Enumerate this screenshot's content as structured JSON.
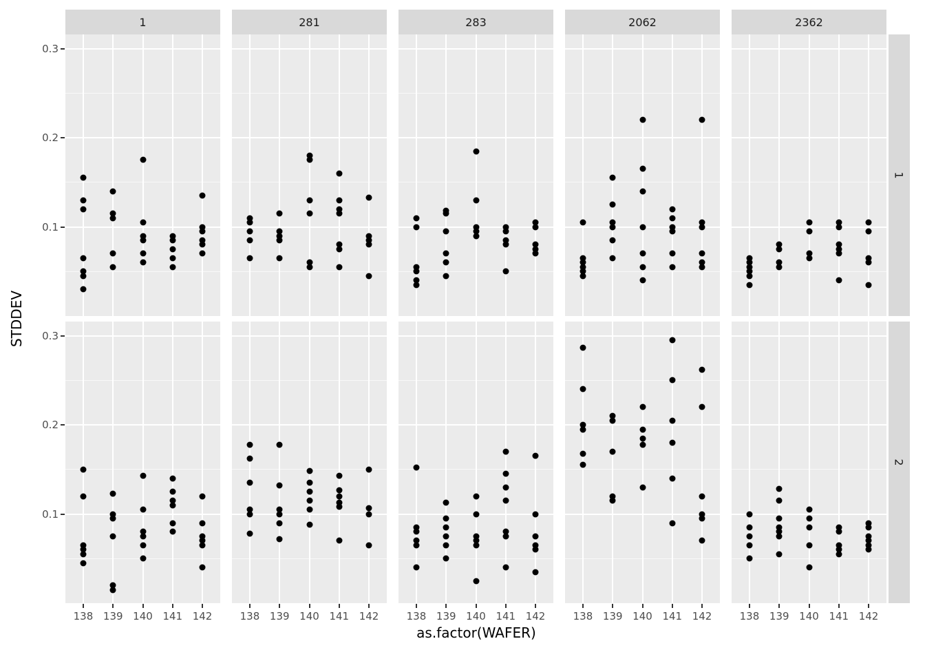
{
  "chart_data": {
    "type": "scatter",
    "title": "",
    "xlabel": "as.factor(WAFER)",
    "ylabel": "STDDEV",
    "x_categories": [
      "138",
      "139",
      "140",
      "141",
      "142"
    ],
    "col_facets": [
      "1",
      "281",
      "283",
      "2062",
      "2362"
    ],
    "row_facets": [
      "1",
      "2"
    ],
    "y_ticks": [
      0.3,
      0.2,
      0.1
    ],
    "y_minor_ticks": [
      0.05,
      0.15,
      0.25
    ],
    "ylim": [
      0,
      0.316
    ],
    "grid": "on",
    "legend": "none",
    "facets": [
      {
        "row": "1",
        "col": "1",
        "points": {
          "138": [
            0.155,
            0.13,
            0.12,
            0.065,
            0.05,
            0.045,
            0.03
          ],
          "139": [
            0.14,
            0.115,
            0.11,
            0.07,
            0.055
          ],
          "140": [
            0.175,
            0.105,
            0.09,
            0.085,
            0.07,
            0.06
          ],
          "141": [
            0.09,
            0.085,
            0.075,
            0.065,
            0.055
          ],
          "142": [
            0.135,
            0.1,
            0.095,
            0.085,
            0.08,
            0.07
          ]
        }
      },
      {
        "row": "1",
        "col": "281",
        "points": {
          "138": [
            0.11,
            0.105,
            0.095,
            0.085,
            0.065
          ],
          "139": [
            0.115,
            0.095,
            0.09,
            0.085,
            0.065
          ],
          "140": [
            0.18,
            0.175,
            0.13,
            0.115,
            0.06,
            0.055
          ],
          "141": [
            0.16,
            0.13,
            0.12,
            0.115,
            0.08,
            0.075,
            0.055
          ],
          "142": [
            0.133,
            0.09,
            0.085,
            0.08,
            0.045
          ]
        }
      },
      {
        "row": "1",
        "col": "283",
        "points": {
          "138": [
            0.11,
            0.1,
            0.055,
            0.05,
            0.04,
            0.035
          ],
          "139": [
            0.118,
            0.115,
            0.095,
            0.07,
            0.06,
            0.045
          ],
          "140": [
            0.185,
            0.13,
            0.1,
            0.095,
            0.09
          ],
          "141": [
            0.1,
            0.095,
            0.085,
            0.08,
            0.05
          ],
          "142": [
            0.105,
            0.1,
            0.08,
            0.075,
            0.07
          ]
        }
      },
      {
        "row": "1",
        "col": "2062",
        "points": {
          "138": [
            0.105,
            0.065,
            0.06,
            0.055,
            0.05,
            0.045
          ],
          "139": [
            0.155,
            0.125,
            0.105,
            0.1,
            0.085,
            0.065
          ],
          "140": [
            0.22,
            0.165,
            0.14,
            0.1,
            0.07,
            0.055,
            0.04
          ],
          "141": [
            0.12,
            0.11,
            0.1,
            0.095,
            0.07,
            0.055
          ],
          "142": [
            0.22,
            0.105,
            0.1,
            0.07,
            0.06,
            0.055
          ]
        }
      },
      {
        "row": "1",
        "col": "2362",
        "points": {
          "138": [
            0.065,
            0.06,
            0.055,
            0.05,
            0.045,
            0.035
          ],
          "139": [
            0.08,
            0.075,
            0.06,
            0.055
          ],
          "140": [
            0.105,
            0.095,
            0.07,
            0.065
          ],
          "141": [
            0.105,
            0.1,
            0.08,
            0.075,
            0.07,
            0.04
          ],
          "142": [
            0.105,
            0.095,
            0.065,
            0.06,
            0.035
          ]
        }
      },
      {
        "row": "2",
        "col": "1",
        "points": {
          "138": [
            0.15,
            0.12,
            0.065,
            0.06,
            0.055,
            0.045
          ],
          "139": [
            0.123,
            0.1,
            0.095,
            0.075,
            0.02,
            0.015
          ],
          "140": [
            0.143,
            0.105,
            0.08,
            0.075,
            0.065,
            0.05
          ],
          "141": [
            0.14,
            0.125,
            0.115,
            0.11,
            0.09,
            0.08
          ],
          "142": [
            0.12,
            0.09,
            0.075,
            0.07,
            0.065,
            0.04
          ]
        }
      },
      {
        "row": "2",
        "col": "281",
        "points": {
          "138": [
            0.178,
            0.162,
            0.135,
            0.105,
            0.1,
            0.078
          ],
          "139": [
            0.178,
            0.132,
            0.105,
            0.1,
            0.09,
            0.072
          ],
          "140": [
            0.148,
            0.135,
            0.125,
            0.115,
            0.105,
            0.088
          ],
          "141": [
            0.143,
            0.127,
            0.12,
            0.113,
            0.108,
            0.07
          ],
          "142": [
            0.15,
            0.107,
            0.1,
            0.065
          ]
        }
      },
      {
        "row": "2",
        "col": "283",
        "points": {
          "138": [
            0.152,
            0.085,
            0.08,
            0.07,
            0.065,
            0.04
          ],
          "139": [
            0.113,
            0.095,
            0.085,
            0.075,
            0.065,
            0.05
          ],
          "140": [
            0.12,
            0.1,
            0.075,
            0.07,
            0.065,
            0.025
          ],
          "141": [
            0.17,
            0.145,
            0.13,
            0.115,
            0.08,
            0.075,
            0.04
          ],
          "142": [
            0.165,
            0.1,
            0.075,
            0.065,
            0.06,
            0.035
          ]
        }
      },
      {
        "row": "2",
        "col": "2062",
        "points": {
          "138": [
            0.287,
            0.24,
            0.2,
            0.195,
            0.168,
            0.155
          ],
          "139": [
            0.21,
            0.205,
            0.17,
            0.12,
            0.115
          ],
          "140": [
            0.22,
            0.195,
            0.185,
            0.178,
            0.13
          ],
          "141": [
            0.295,
            0.25,
            0.205,
            0.18,
            0.14,
            0.09
          ],
          "142": [
            0.262,
            0.22,
            0.12,
            0.1,
            0.095,
            0.07
          ]
        }
      },
      {
        "row": "2",
        "col": "2362",
        "points": {
          "138": [
            0.1,
            0.085,
            0.075,
            0.065,
            0.05
          ],
          "139": [
            0.128,
            0.115,
            0.095,
            0.085,
            0.08,
            0.075,
            0.055
          ],
          "140": [
            0.105,
            0.095,
            0.085,
            0.065,
            0.04
          ],
          "141": [
            0.085,
            0.08,
            0.065,
            0.06,
            0.055
          ],
          "142": [
            0.09,
            0.085,
            0.075,
            0.07,
            0.065,
            0.06
          ]
        }
      }
    ],
    "colors": {
      "panel_bg": "#EBEBEB",
      "strip_bg": "#D9D9D9",
      "grid": "#FFFFFF",
      "point": "#000000",
      "tick_text": "#4D4D4D",
      "strip_text": "#1A1A1A",
      "axis_title": "#000000"
    }
  }
}
